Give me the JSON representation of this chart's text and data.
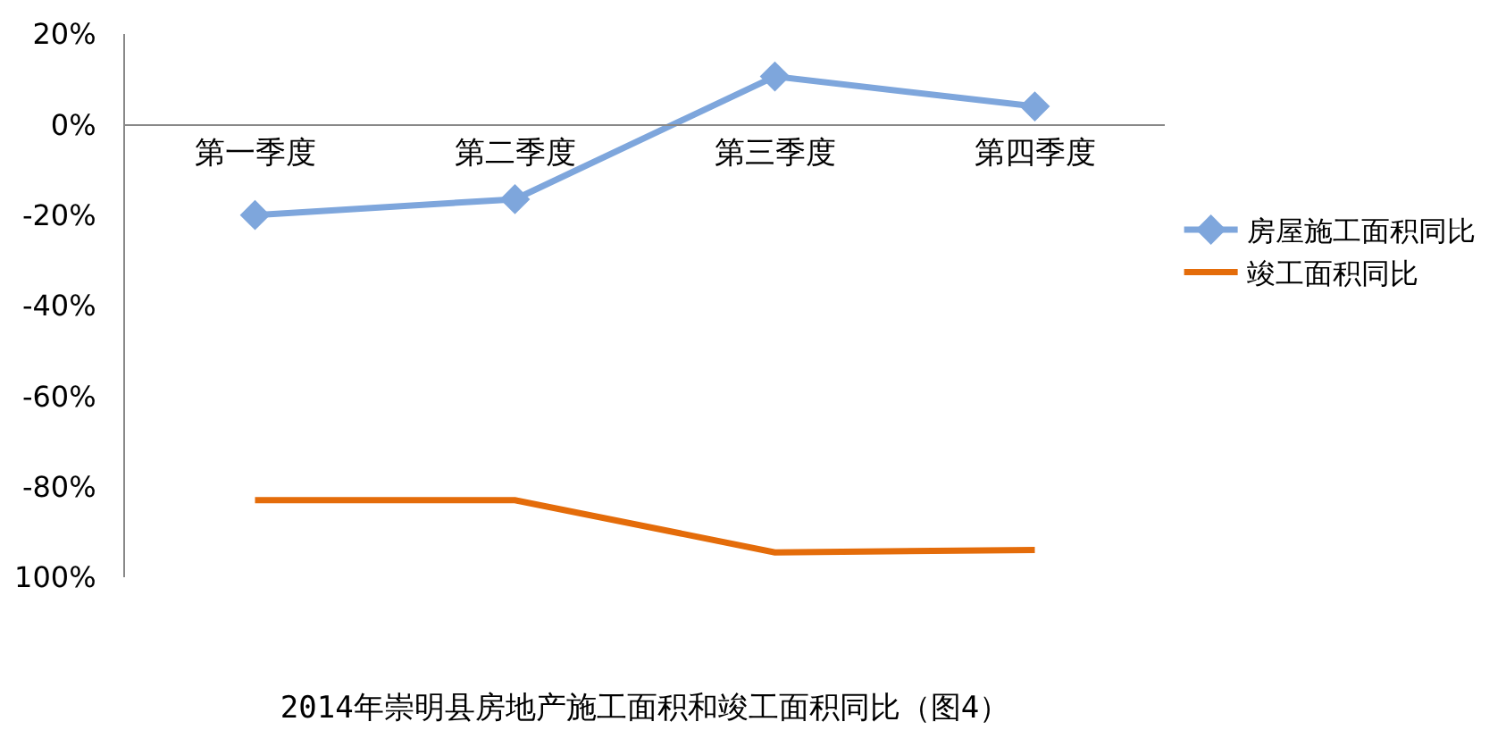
{
  "chart_data": {
    "type": "line",
    "title": "2014年崇明县房地产施工面积和竣工面积同比（图4）",
    "categories": [
      "第一季度",
      "第二季度",
      "第三季度",
      "第四季度"
    ],
    "series": [
      {
        "name": "房屋施工面积同比",
        "color": "#7ea6dc",
        "marker": "diamond",
        "values": [
          -20,
          -16.5,
          10.6,
          4
        ]
      },
      {
        "name": "竣工面积同比",
        "color": "#e46c0a",
        "marker": "none",
        "values": [
          -83,
          -83,
          -94.5,
          -94
        ]
      }
    ],
    "ylim": [
      -100,
      20
    ],
    "yticks": [
      {
        "value": -100,
        "label": "100%"
      },
      {
        "value": -80,
        "label": "-80%"
      },
      {
        "value": -60,
        "label": "-60%"
      },
      {
        "value": -40,
        "label": "-40%"
      },
      {
        "value": -20,
        "label": "-20%"
      },
      {
        "value": 0,
        "label": "0%"
      },
      {
        "value": 20,
        "label": "20%"
      }
    ],
    "grid": false,
    "legend": "right",
    "line_style": "solid"
  }
}
